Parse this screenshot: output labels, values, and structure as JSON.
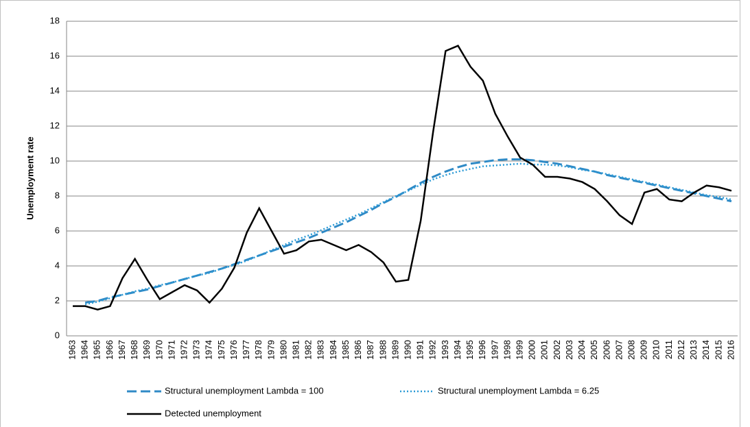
{
  "chart_data": {
    "type": "line",
    "y_label": "Unemployment rate",
    "categories": [
      "1963",
      "1964",
      "1965",
      "1966",
      "1967",
      "1968",
      "1969",
      "1970",
      "1971",
      "1972",
      "1973",
      "1974",
      "1975",
      "1976",
      "1977",
      "1978",
      "1979",
      "1980",
      "1981",
      "1982",
      "1983",
      "1984",
      "1985",
      "1986",
      "1987",
      "1988",
      "1989",
      "1990",
      "1991",
      "1992",
      "1993",
      "1994",
      "1995",
      "1996",
      "1997",
      "1998",
      "1999",
      "2000",
      "2001",
      "2002",
      "2003",
      "2004",
      "2005",
      "2006",
      "2007",
      "2008",
      "2009",
      "2010",
      "2011",
      "2012",
      "2013",
      "2014",
      "2015",
      "2016"
    ],
    "series": [
      {
        "name": "Structural unemployment Lambda = 100",
        "color": "#2f8ac6",
        "dash": "dashed",
        "values": [
          null,
          1.9,
          2.0,
          2.2,
          2.35,
          2.5,
          2.65,
          2.85,
          3.05,
          3.25,
          3.45,
          3.65,
          3.85,
          4.1,
          4.35,
          4.6,
          4.85,
          5.1,
          5.35,
          5.6,
          5.9,
          6.2,
          6.5,
          6.85,
          7.2,
          7.6,
          7.95,
          8.35,
          8.75,
          9.1,
          9.4,
          9.65,
          9.85,
          9.95,
          10.05,
          10.1,
          10.1,
          10.05,
          9.95,
          9.85,
          9.7,
          9.55,
          9.4,
          9.2,
          9.05,
          8.9,
          8.75,
          8.6,
          8.45,
          8.3,
          8.15,
          8.0,
          7.85,
          7.7
        ]
      },
      {
        "name": "Structural unemployment Lambda = 6.25",
        "color": "#2a9ad6",
        "dash": "dotted",
        "values": [
          null,
          1.8,
          1.95,
          2.15,
          2.35,
          2.55,
          2.7,
          2.9,
          3.05,
          3.25,
          3.45,
          3.6,
          3.85,
          4.05,
          4.3,
          4.6,
          4.9,
          5.2,
          5.5,
          5.75,
          6.05,
          6.35,
          6.65,
          6.95,
          7.3,
          7.65,
          8.0,
          8.3,
          8.65,
          8.95,
          9.2,
          9.4,
          9.55,
          9.7,
          9.75,
          9.8,
          9.85,
          9.8,
          9.8,
          9.75,
          9.65,
          9.5,
          9.4,
          9.25,
          9.1,
          8.95,
          8.8,
          8.65,
          8.5,
          8.35,
          8.2,
          8.05,
          7.95,
          7.8
        ]
      },
      {
        "name": "Detected unemployment",
        "color": "#000000",
        "dash": "solid",
        "values": [
          1.7,
          1.7,
          1.5,
          1.7,
          3.3,
          4.4,
          3.2,
          2.1,
          2.5,
          2.9,
          2.6,
          1.9,
          2.7,
          3.9,
          5.9,
          7.3,
          6.0,
          4.7,
          4.9,
          5.4,
          5.5,
          5.2,
          4.9,
          5.2,
          4.8,
          4.2,
          3.1,
          3.2,
          6.6,
          11.7,
          16.3,
          16.6,
          15.4,
          14.6,
          12.7,
          11.4,
          10.2,
          9.8,
          9.1,
          9.1,
          9.0,
          8.8,
          8.4,
          7.7,
          6.9,
          6.4,
          8.2,
          8.4,
          7.8,
          7.7,
          8.2,
          8.6,
          8.5,
          8.3
        ]
      }
    ],
    "ylim": [
      0,
      18
    ],
    "yticks": [
      0,
      2,
      4,
      6,
      8,
      10,
      12,
      14,
      16,
      18
    ],
    "grid": true
  }
}
